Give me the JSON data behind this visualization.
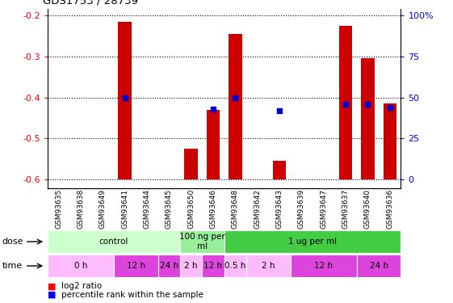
{
  "title": "GDS1753 / 28739",
  "samples": [
    "GSM93635",
    "GSM93638",
    "GSM93649",
    "GSM93641",
    "GSM93644",
    "GSM93645",
    "GSM93650",
    "GSM93646",
    "GSM93648",
    "GSM93642",
    "GSM93643",
    "GSM93639",
    "GSM93647",
    "GSM93637",
    "GSM93640",
    "GSM93636"
  ],
  "log2_ratio": [
    0,
    0,
    0,
    -0.215,
    0,
    0,
    -0.525,
    -0.43,
    -0.245,
    0,
    -0.555,
    0,
    0,
    -0.225,
    -0.305,
    -0.415
  ],
  "percentile_rank": [
    null,
    null,
    null,
    50,
    null,
    null,
    null,
    43,
    50,
    null,
    42,
    null,
    null,
    46,
    46,
    44
  ],
  "ymin": -0.62,
  "ymax": -0.185,
  "yticks_left": [
    -0.2,
    -0.3,
    -0.4,
    -0.5,
    -0.6
  ],
  "pct_ticks": [
    0,
    25,
    50,
    75,
    100
  ],
  "bar_color": "#cc0000",
  "dot_color": "#0000cc",
  "dose_groups": [
    {
      "label": "control",
      "start": 0,
      "end": 5,
      "color": "#ccffcc"
    },
    {
      "label": "100 ng per\nml",
      "start": 6,
      "end": 7,
      "color": "#99ee99"
    },
    {
      "label": "1 ug per ml",
      "start": 8,
      "end": 15,
      "color": "#44cc44"
    }
  ],
  "time_groups": [
    {
      "label": "0 h",
      "start": 0,
      "end": 2,
      "color": "#ffbbff"
    },
    {
      "label": "12 h",
      "start": 3,
      "end": 4,
      "color": "#dd44dd"
    },
    {
      "label": "24 h",
      "start": 5,
      "end": 5,
      "color": "#dd44dd"
    },
    {
      "label": "2 h",
      "start": 6,
      "end": 6,
      "color": "#ffbbff"
    },
    {
      "label": "12 h",
      "start": 7,
      "end": 7,
      "color": "#dd44dd"
    },
    {
      "label": "0.5 h",
      "start": 8,
      "end": 8,
      "color": "#ffbbff"
    },
    {
      "label": "2 h",
      "start": 9,
      "end": 10,
      "color": "#ffbbff"
    },
    {
      "label": "12 h",
      "start": 11,
      "end": 13,
      "color": "#dd44dd"
    },
    {
      "label": "24 h",
      "start": 14,
      "end": 15,
      "color": "#dd44dd"
    }
  ]
}
